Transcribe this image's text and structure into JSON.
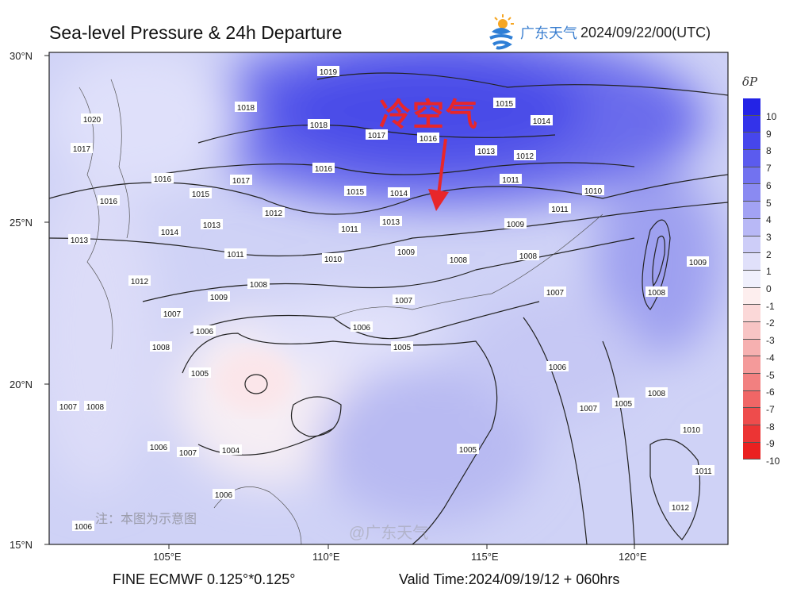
{
  "header": {
    "title": "Sea-level Pressure & 24h Departure",
    "brand": "广东天气",
    "datetime": "2024/09/22/00(UTC)",
    "logo_icon": "sun-cloud-logo-icon"
  },
  "map": {
    "lat_labels": [
      "30°N",
      "25°N",
      "20°N",
      "15°N"
    ],
    "lon_labels": [
      "105°E",
      "110°E",
      "115°E",
      "120°E"
    ],
    "isobar_labels": [
      "1019",
      "1018",
      "1018",
      "1017",
      "1016",
      "1015",
      "1014",
      "1013",
      "1012",
      "1011",
      "1017",
      "1016",
      "1015",
      "1014",
      "1015",
      "1016",
      "1016",
      "1012",
      "1013",
      "1014",
      "1013",
      "1011",
      "1010",
      "1011",
      "1012",
      "1013",
      "1009",
      "1008",
      "1009",
      "1008",
      "1009",
      "1008",
      "1011",
      "1010",
      "1007",
      "1007",
      "1006",
      "1006",
      "1005",
      "1008",
      "1007",
      "1009",
      "1008",
      "1006",
      "1007",
      "1005",
      "1008",
      "1005",
      "1004",
      "1006",
      "1007",
      "1006",
      "1006",
      "1007",
      "1008",
      "1010",
      "1011",
      "1012",
      "1005",
      "1017",
      "1020"
    ],
    "annotation": "冷空气",
    "annotation_color": "#e8262a",
    "note": "注：本图为示意图",
    "watermark": "@广东天气"
  },
  "colorbar": {
    "title": "δP",
    "labels": [
      "10",
      "9",
      "8",
      "7",
      "6",
      "5",
      "4",
      "3",
      "2",
      "1",
      "0",
      "-1",
      "-2",
      "-3",
      "-4",
      "-5",
      "-6",
      "-7",
      "-8",
      "-9",
      "-10"
    ],
    "colors": [
      "#2323e6",
      "#3333ea",
      "#4646ec",
      "#5b5bee",
      "#7272f0",
      "#8a8af2",
      "#a2a2f4",
      "#b8b8f6",
      "#cdcdf8",
      "#e0e0fa",
      "#f0f0fc",
      "#fdeeee",
      "#fbd8d8",
      "#f8c4c4",
      "#f6b0b0",
      "#f49a9a",
      "#f28080",
      "#f06666",
      "#ee4c4c",
      "#ec3434",
      "#ea2020"
    ]
  },
  "footer": {
    "model": "FINE ECMWF 0.125°*0.125°",
    "valid": "Valid Time:2024/09/19/12 + 060hrs"
  }
}
